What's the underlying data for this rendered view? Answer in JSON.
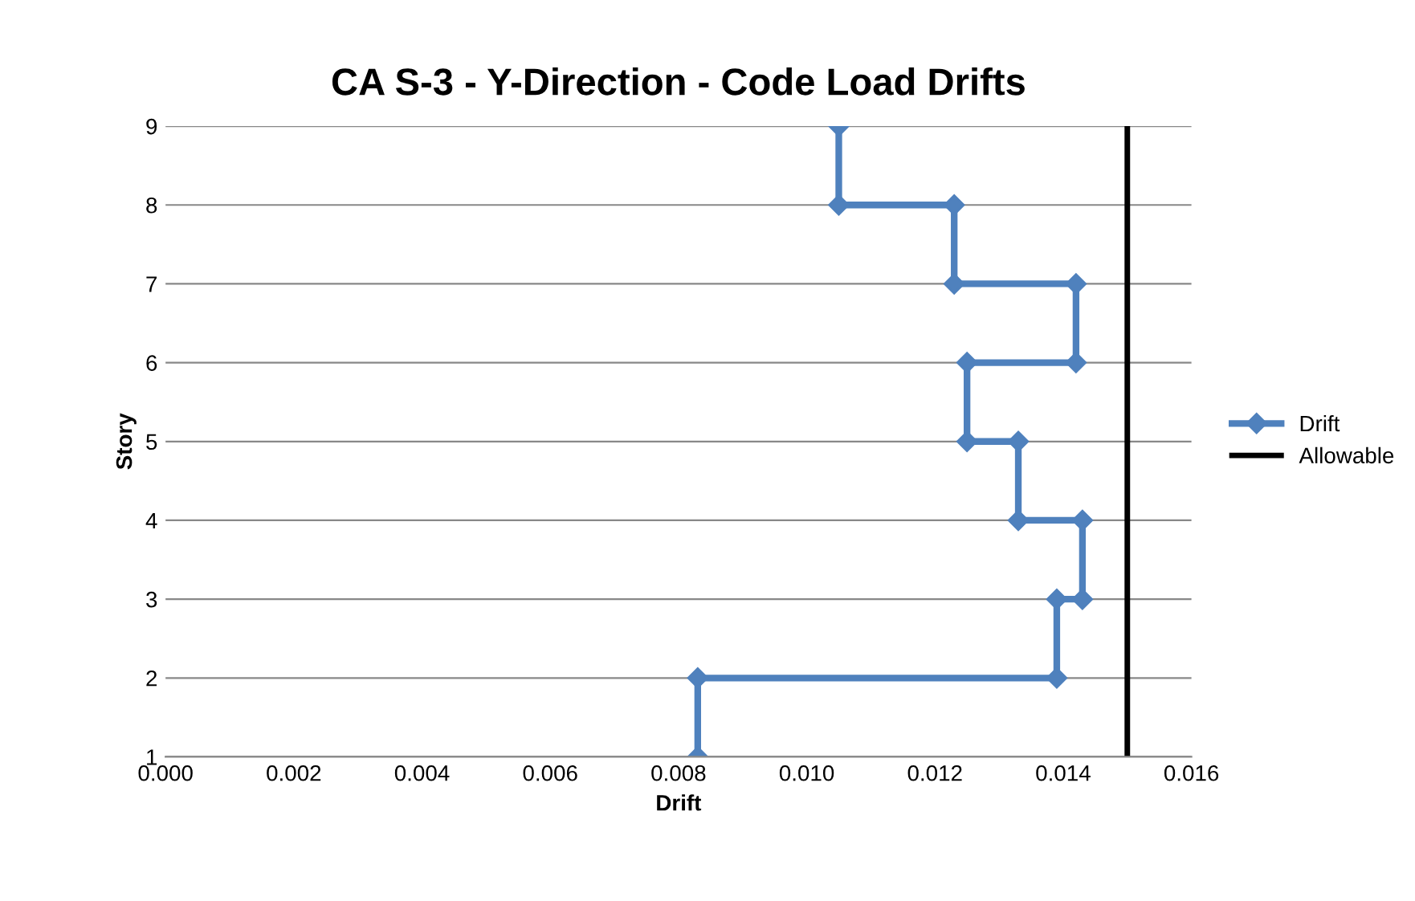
{
  "chart_data": {
    "type": "line",
    "title": "CA S-3 - Y-Direction - Code Load Drifts",
    "xlabel": "Drift",
    "ylabel": "Story",
    "series": [
      {
        "name": "Drift",
        "color": "#4f81bd",
        "marker": "diamond",
        "x": [
          0.0105,
          0.0105,
          0.0123,
          0.0123,
          0.0142,
          0.0142,
          0.0125,
          0.0125,
          0.0133,
          0.0133,
          0.0143,
          0.0143,
          0.0139,
          0.0139,
          0.0083,
          0.0083
        ],
        "values": [
          9,
          8,
          8,
          7,
          7,
          6,
          6,
          5,
          5,
          4,
          4,
          3,
          3,
          2,
          2,
          1
        ]
      },
      {
        "name": "Allowable",
        "color": "#000000",
        "marker": "none",
        "x": [
          0.015,
          0.015
        ],
        "values": [
          1,
          9
        ]
      }
    ],
    "xlim": [
      0,
      0.016
    ],
    "xticks": [
      {
        "value": 0,
        "label": "0.000"
      },
      {
        "value": 0.002,
        "label": "0.002"
      },
      {
        "value": 0.004,
        "label": "0.004"
      },
      {
        "value": 0.006,
        "label": "0.006"
      },
      {
        "value": 0.008,
        "label": "0.008"
      },
      {
        "value": 0.01,
        "label": "0.010"
      },
      {
        "value": 0.012,
        "label": "0.012"
      },
      {
        "value": 0.014,
        "label": "0.014"
      },
      {
        "value": 0.016,
        "label": "0.016"
      }
    ],
    "ylim": [
      1,
      9
    ],
    "yticks": [
      1,
      2,
      3,
      4,
      5,
      6,
      7,
      8,
      9
    ],
    "grid": "y",
    "legend": "right",
    "line_style": "solid"
  }
}
